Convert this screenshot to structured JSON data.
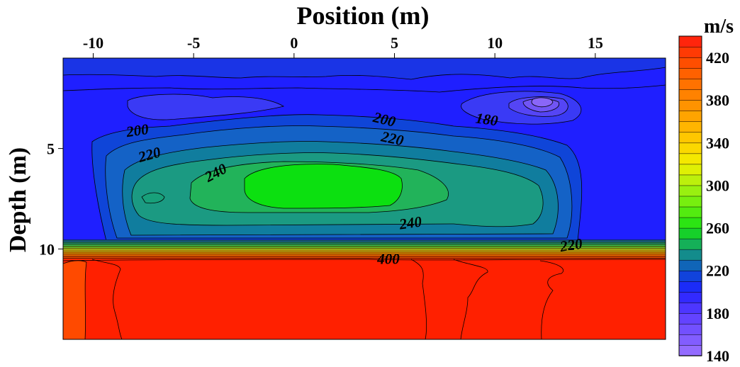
{
  "chart_data": {
    "type": "heatmap",
    "title": "Position (m)",
    "xlabel": "Position (m)",
    "ylabel": "Depth (m)",
    "xlim": [
      -11.5,
      18.5
    ],
    "ylim": [
      0,
      14
    ],
    "x_ticks": [
      {
        "value": -10,
        "label": "-10"
      },
      {
        "value": -5,
        "label": "-5"
      },
      {
        "value": 0,
        "label": "0"
      },
      {
        "value": 5,
        "label": "5"
      },
      {
        "value": 10,
        "label": "10"
      },
      {
        "value": 15,
        "label": "15"
      }
    ],
    "y_ticks": [
      {
        "value": 4.5,
        "label": "5"
      },
      {
        "value": 9.5,
        "label": "10"
      }
    ],
    "colorbar": {
      "unit": "m/s",
      "min": 140,
      "max": 440,
      "step": 10,
      "tick_labels": [
        "420",
        "380",
        "340",
        "300",
        "260",
        "220",
        "180",
        "140"
      ],
      "tick_values": [
        420,
        380,
        340,
        300,
        260,
        220,
        180,
        140
      ]
    },
    "contour_labels": [
      {
        "text": "200",
        "x": -7.8,
        "y": 3.6,
        "angle": -8
      },
      {
        "text": "220",
        "x": -7.2,
        "y": 4.8,
        "angle": -15
      },
      {
        "text": "240",
        "x": -3.9,
        "y": 5.7,
        "angle": -28
      },
      {
        "text": "200",
        "x": 4.5,
        "y": 3.05,
        "angle": 14
      },
      {
        "text": "220",
        "x": 4.9,
        "y": 4.0,
        "angle": 12
      },
      {
        "text": "180",
        "x": 9.6,
        "y": 3.05,
        "angle": 8
      },
      {
        "text": "240",
        "x": 5.8,
        "y": 8.2,
        "angle": -8
      },
      {
        "text": "220",
        "x": 13.8,
        "y": 9.3,
        "angle": -8
      },
      {
        "text": "400",
        "x": 4.7,
        "y": 10.0,
        "angle": 0
      }
    ]
  },
  "colors": {
    "high_layer": "#ff2000",
    "high_layer_edge": "#ff4a00",
    "background_low": "#1f1fff",
    "green_core": "#0ce010"
  }
}
